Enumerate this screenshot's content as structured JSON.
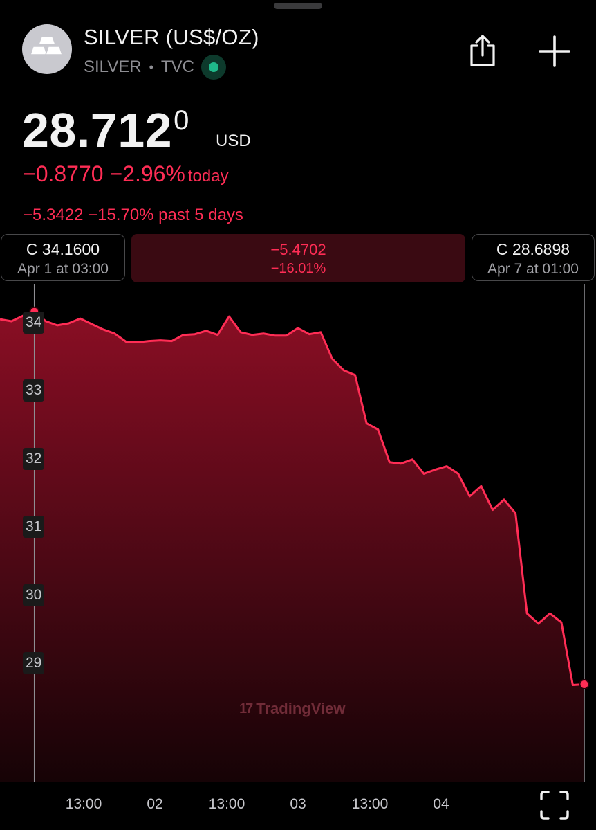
{
  "header": {
    "title": "SILVER (US$/OZ)",
    "symbol": "SILVER",
    "exchange": "TVC",
    "separator": "•",
    "avatar_icon": "silver-bars-icon",
    "status_color": "#1fb98a",
    "share_icon": "share-icon",
    "add_icon": "plus-icon"
  },
  "quote": {
    "price_main": "28.712",
    "price_superscript": "0",
    "currency": "USD",
    "today_change": "−0.8770 −2.96%",
    "today_suffix": "today",
    "five_day_change": "−5.3422 −15.70% past 5 days",
    "negative_color": "#ff2d55"
  },
  "range_selection": {
    "start": {
      "close": "C 34.1600",
      "time": "Apr 1 at 03:00"
    },
    "end": {
      "close": "C 28.6898",
      "time": "Apr 7 at 01:00"
    },
    "diff_abs": "−5.4702",
    "diff_pct": "−16.01%"
  },
  "watermark": {
    "logo": "17",
    "text": "TradingView"
  },
  "fullscreen_icon": "fullscreen-icon",
  "chart_data": {
    "type": "area",
    "title": "",
    "xlabel": "",
    "ylabel": "",
    "ylim": [
      27.5,
      34.6
    ],
    "y_ticks": [
      34,
      33,
      32,
      31,
      30,
      29
    ],
    "x_ticks": [
      "13:00",
      "02",
      "13:00",
      "03",
      "13:00",
      "04"
    ],
    "grid": false,
    "line_color": "#ff2d55",
    "series": [
      {
        "values": [
          34.05,
          34.02,
          34.1,
          34.16,
          34.02,
          33.96,
          33.99,
          34.06,
          33.98,
          33.9,
          33.84,
          33.72,
          33.71,
          33.73,
          33.74,
          33.73,
          33.82,
          33.83,
          33.88,
          33.82,
          34.09,
          33.86,
          33.82,
          33.84,
          33.81,
          33.81,
          33.92,
          33.83,
          33.86,
          33.47,
          33.3,
          33.23,
          32.52,
          32.43,
          31.95,
          31.93,
          31.99,
          31.78,
          31.84,
          31.89,
          31.78,
          31.45,
          31.6,
          31.25,
          31.4,
          31.2,
          29.73,
          29.58,
          29.73,
          29.6,
          28.68,
          28.69
        ]
      }
    ]
  }
}
